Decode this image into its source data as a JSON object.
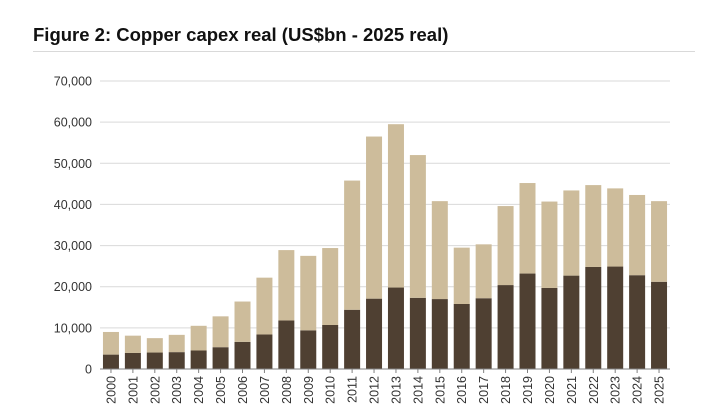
{
  "figure": {
    "title": "Figure 2: Copper capex real (US$bn - 2025 real)"
  },
  "colors": {
    "lower_segment": "#4f4032",
    "upper_segment": "#cdbc9b",
    "gridline": "#d9d9d9",
    "axis": "#808080",
    "title_rule": "#d9d9d9"
  },
  "chart_data": {
    "type": "bar",
    "stacked": true,
    "title": "Figure 2: Copper capex real (US$bn - 2025 real)",
    "xlabel": "",
    "ylabel": "",
    "ylim": [
      0,
      70000
    ],
    "yticks": [
      0,
      10000,
      20000,
      30000,
      40000,
      50000,
      60000,
      70000
    ],
    "ytick_labels": [
      "0",
      "10,000",
      "20,000",
      "30,000",
      "40,000",
      "50,000",
      "60,000",
      "70,000"
    ],
    "grid": true,
    "legend": "none",
    "categories": [
      "2000",
      "2001",
      "2002",
      "2003",
      "2004",
      "2005",
      "2006",
      "2007",
      "2008",
      "2009",
      "2010",
      "2011",
      "2012",
      "2013",
      "2014",
      "2015",
      "2016",
      "2017",
      "2018",
      "2019",
      "2020",
      "2021",
      "2022",
      "2023",
      "2024",
      "2025"
    ],
    "series": [
      {
        "color": "#4f4032",
        "values": [
          3500,
          3900,
          4000,
          4100,
          4500,
          5300,
          6600,
          8400,
          11800,
          9400,
          10700,
          14400,
          17100,
          19800,
          17300,
          17000,
          15800,
          17200,
          20400,
          23200,
          19700,
          22700,
          24800,
          24900,
          22800,
          21200
        ]
      },
      {
        "color": "#cdbc9b",
        "values": [
          5500,
          4200,
          3500,
          4200,
          6000,
          7500,
          9800,
          13800,
          17100,
          18100,
          18700,
          31400,
          39400,
          39700,
          34700,
          23800,
          13700,
          13100,
          19200,
          22000,
          21000,
          20700,
          19900,
          19000,
          19500,
          19600
        ]
      }
    ]
  }
}
